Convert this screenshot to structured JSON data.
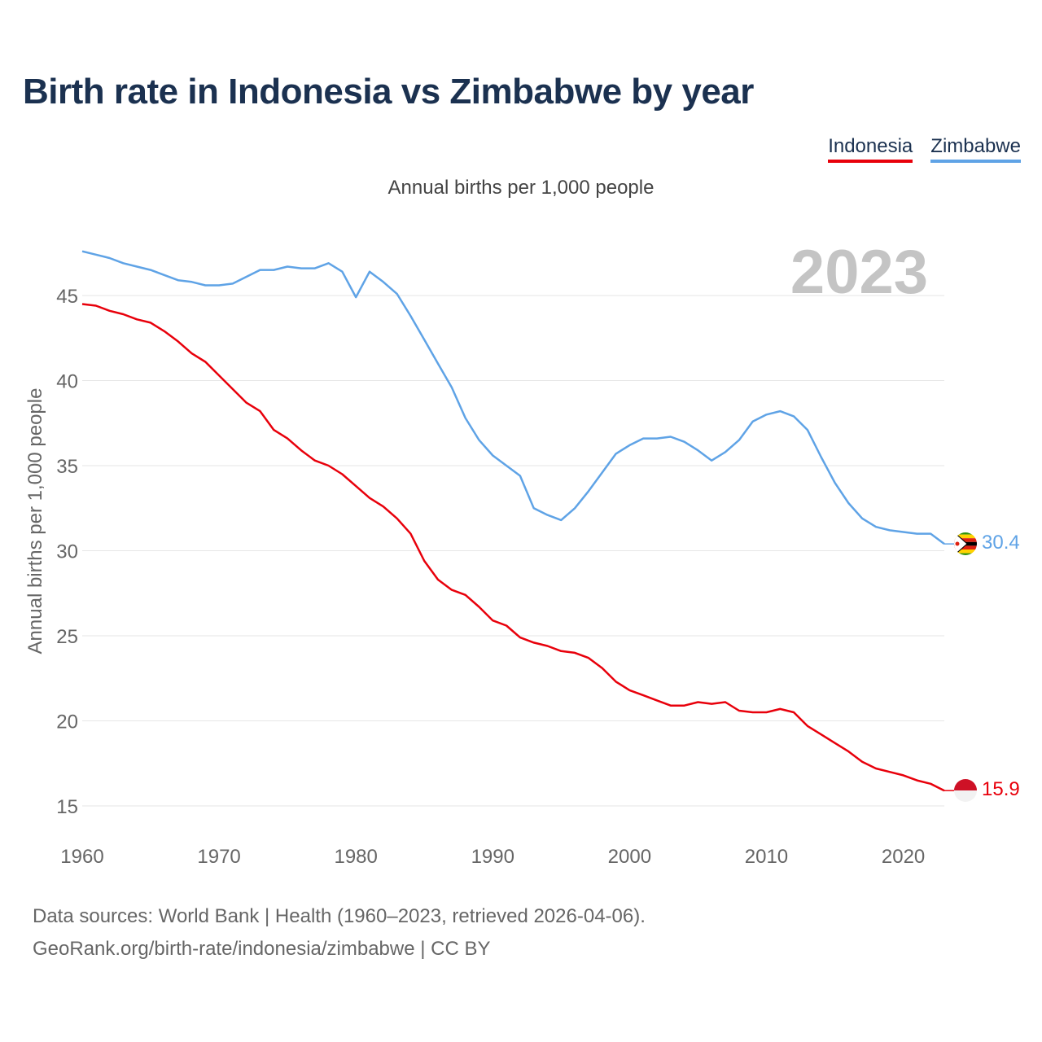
{
  "title": "Birth rate in Indonesia vs Zimbabwe by year",
  "subtitle": "Annual births per 1,000 people",
  "legend": [
    "Indonesia",
    "Zimbabwe"
  ],
  "year_label": "2023",
  "footer": {
    "line1": "Data sources: World Bank | Health (1960–2023, retrieved 2026-04-06).",
    "line2": "GeoRank.org/birth-rate/indonesia/zimbabwe | CC BY"
  },
  "colors": {
    "indonesia": "#e8000b",
    "zimbabwe": "#5fa3e6",
    "title": "#1b3150",
    "year": "#c4c4c4"
  },
  "chart_data": {
    "type": "line",
    "title": "Birth rate in Indonesia vs Zimbabwe by year",
    "xlabel": "",
    "ylabel": "Annual births per 1,000 people",
    "xlim": [
      1960,
      2023
    ],
    "ylim": [
      14,
      48
    ],
    "x_ticks": [
      1960,
      1970,
      1980,
      1990,
      2000,
      2010,
      2020
    ],
    "y_ticks": [
      15,
      20,
      25,
      30,
      35,
      40,
      45
    ],
    "grid": true,
    "legend_position": "top-right",
    "x": [
      1960,
      1961,
      1962,
      1963,
      1964,
      1965,
      1966,
      1967,
      1968,
      1969,
      1970,
      1971,
      1972,
      1973,
      1974,
      1975,
      1976,
      1977,
      1978,
      1979,
      1980,
      1981,
      1982,
      1983,
      1984,
      1985,
      1986,
      1987,
      1988,
      1989,
      1990,
      1991,
      1992,
      1993,
      1994,
      1995,
      1996,
      1997,
      1998,
      1999,
      2000,
      2001,
      2002,
      2003,
      2004,
      2005,
      2006,
      2007,
      2008,
      2009,
      2010,
      2011,
      2012,
      2013,
      2014,
      2015,
      2016,
      2017,
      2018,
      2019,
      2020,
      2021,
      2022,
      2023
    ],
    "series": [
      {
        "name": "Indonesia",
        "end_label": "15.9",
        "values": [
          44.5,
          44.4,
          44.1,
          43.9,
          43.6,
          43.4,
          42.9,
          42.3,
          41.6,
          41.1,
          40.3,
          39.5,
          38.7,
          38.2,
          37.1,
          36.6,
          35.9,
          35.3,
          35.0,
          34.5,
          33.8,
          33.1,
          32.6,
          31.9,
          31.0,
          29.4,
          28.3,
          27.7,
          27.4,
          26.7,
          25.9,
          25.6,
          24.9,
          24.6,
          24.4,
          24.1,
          24.0,
          23.7,
          23.1,
          22.3,
          21.8,
          21.5,
          21.2,
          20.9,
          20.9,
          21.1,
          21.0,
          21.1,
          20.6,
          20.5,
          20.5,
          20.7,
          20.5,
          19.7,
          19.2,
          18.7,
          18.2,
          17.6,
          17.2,
          17.0,
          16.8,
          16.5,
          16.3,
          15.9
        ]
      },
      {
        "name": "Zimbabwe",
        "end_label": "30.4",
        "values": [
          47.6,
          47.4,
          47.2,
          46.9,
          46.7,
          46.5,
          46.2,
          45.9,
          45.8,
          45.6,
          45.6,
          45.7,
          46.1,
          46.5,
          46.5,
          46.7,
          46.6,
          46.6,
          46.9,
          46.4,
          44.9,
          46.4,
          45.8,
          45.1,
          43.8,
          42.4,
          41.0,
          39.6,
          37.8,
          36.5,
          35.6,
          35.0,
          34.4,
          32.5,
          32.1,
          31.8,
          32.5,
          33.5,
          34.6,
          35.7,
          36.2,
          36.6,
          36.6,
          36.7,
          36.4,
          35.9,
          35.3,
          35.8,
          36.5,
          37.6,
          38.0,
          38.2,
          37.9,
          37.1,
          35.5,
          34.0,
          32.8,
          31.9,
          31.4,
          31.2,
          31.1,
          31.0,
          31.0,
          30.4
        ]
      }
    ]
  }
}
